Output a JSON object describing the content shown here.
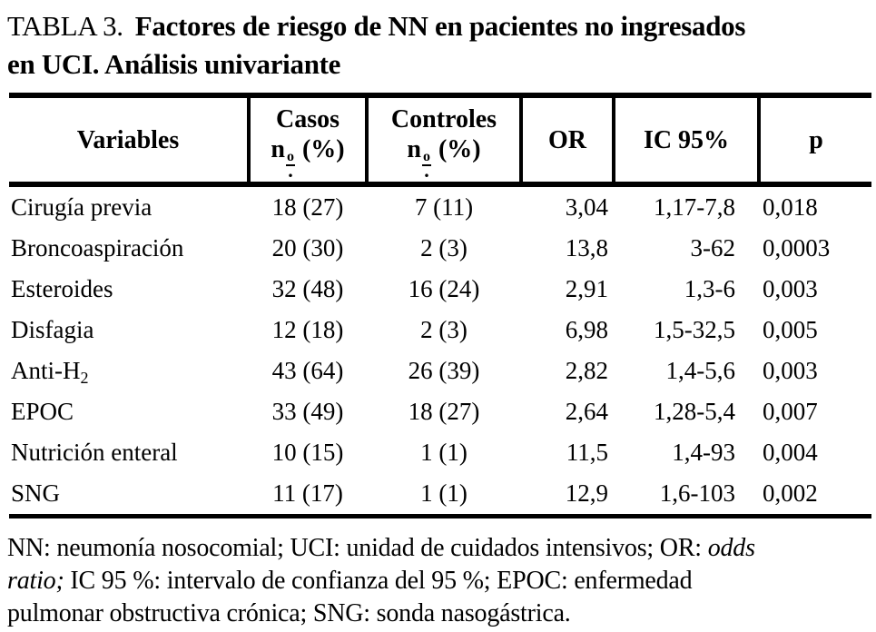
{
  "colors": {
    "background": "#ffffff",
    "text": "#000000",
    "rule": "#000000"
  },
  "title": {
    "label": "TABLA 3.",
    "heading_line1": "Factores de riesgo de NN en pacientes no ingresados",
    "heading_line2": "en UCI. Análisis univariante"
  },
  "table": {
    "header": {
      "variables": "Variables",
      "casos": "Casos",
      "casos_unit_prefix": "n",
      "casos_unit_ord": "o",
      "casos_unit_dot": ".",
      "casos_unit_suffix": "(%)",
      "controles": "Controles",
      "controles_unit_prefix": "n",
      "controles_unit_ord": "o",
      "controles_unit_dot": ".",
      "controles_unit_suffix": "(%)",
      "or": "OR",
      "ic95": "IC 95%",
      "p": "p"
    },
    "rows": [
      {
        "variable": "Cirugía previa",
        "variable_sub": "",
        "casos": "18 (27)",
        "controles": "7 (11)",
        "or": "3,04",
        "ic95": "1,17-7,8",
        "p": "0,018"
      },
      {
        "variable": "Broncoaspiración",
        "variable_sub": "",
        "casos": "20 (30)",
        "controles": "2 (3)",
        "or": "13,8",
        "ic95": "3-62",
        "p": "0,0003"
      },
      {
        "variable": "Esteroides",
        "variable_sub": "",
        "casos": "32 (48)",
        "controles": "16 (24)",
        "or": "2,91",
        "ic95": "1,3-6",
        "p": "0,003"
      },
      {
        "variable": "Disfagia",
        "variable_sub": "",
        "casos": "12 (18)",
        "controles": "2 (3)",
        "or": "6,98",
        "ic95": "1,5-32,5",
        "p": "0,005"
      },
      {
        "variable": "Anti-H",
        "variable_sub": "2",
        "casos": "43 (64)",
        "controles": "26 (39)",
        "or": "2,82",
        "ic95": "1,4-5,6",
        "p": "0,003"
      },
      {
        "variable": "EPOC",
        "variable_sub": "",
        "casos": "33 (49)",
        "controles": "18 (27)",
        "or": "2,64",
        "ic95": "1,28-5,4",
        "p": "0,007"
      },
      {
        "variable": "Nutrición enteral",
        "variable_sub": "",
        "casos": "10 (15)",
        "controles": "1 (1)",
        "or": "11,5",
        "ic95": "1,4-93",
        "p": "0,004"
      },
      {
        "variable": "SNG",
        "variable_sub": "",
        "casos": "11 (17)",
        "controles": "1 (1)",
        "or": "12,9",
        "ic95": "1,6-103",
        "p": "0,002"
      }
    ]
  },
  "footnote": {
    "lines": [
      {
        "normal_before": "NN: neumonía nosocomial; UCI: unidad de cuidados intensivos; OR: ",
        "italic": "odds",
        "normal_after": ""
      },
      {
        "normal_before": "",
        "italic": "ratio;",
        "normal_after": " IC 95 %: intervalo de confianza del 95 %; EPOC: enfermedad"
      },
      {
        "normal_before": "pulmonar obstructiva crónica; SNG: sonda nasogástrica.",
        "italic": "",
        "normal_after": ""
      }
    ]
  }
}
